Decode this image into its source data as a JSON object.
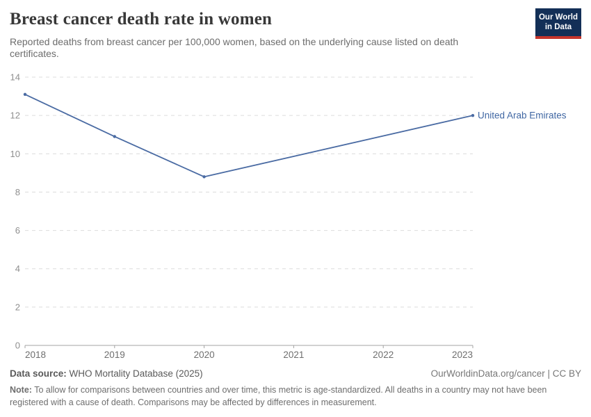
{
  "header": {
    "title": "Breast cancer death rate in women",
    "subtitle": "Reported deaths from breast cancer per 100,000 women, based on the underlying cause listed on death certificates.",
    "logo": {
      "line1": "Our World",
      "line2": "in Data",
      "bg_color": "#132f57",
      "accent_color": "#c5352c"
    }
  },
  "chart_data": {
    "type": "line",
    "title": "Breast cancer death rate in women",
    "x": [
      2018,
      2019,
      2020,
      2023
    ],
    "series": [
      {
        "name": "United Arab Emirates",
        "values": [
          13.1,
          10.9,
          8.8,
          12.0
        ]
      }
    ],
    "x_ticks": [
      2018,
      2019,
      2020,
      2021,
      2022,
      2023
    ],
    "y_ticks": [
      0,
      2,
      4,
      6,
      8,
      10,
      12,
      14
    ],
    "xlim": [
      2018,
      2023
    ],
    "ylim": [
      0,
      14
    ],
    "grid": "horizontal-dashed",
    "legend_position": "end-of-line-label",
    "markers": true,
    "colors": {
      "line": "#4a6ba3",
      "end_label": "#4067a3",
      "gridline": "#dcdcdc",
      "axis": "#a3a3a3",
      "y_tick_text": "#8f8f8f",
      "x_tick_text": "#6f6f6f"
    }
  },
  "footer": {
    "datasource_label": "Data source:",
    "datasource_value": " WHO Mortality Database (2025)",
    "attribution": "OurWorldinData.org/cancer | CC BY",
    "note_label": "Note:",
    "note_text": " To allow for comparisons between countries and over time, this metric is age-standardized. All deaths in a country may not have been registered with a cause of death. Comparisons may be affected by differences in measurement."
  }
}
